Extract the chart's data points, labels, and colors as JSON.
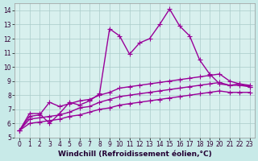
{
  "xlabel": "Windchill (Refroidissement éolien,°C)",
  "bg_color": "#c8eae8",
  "plot_bg_color": "#d8f0ee",
  "line_color": "#990099",
  "xlim": [
    -0.5,
    23.5
  ],
  "ylim": [
    5,
    14.5
  ],
  "xticks": [
    0,
    1,
    2,
    3,
    4,
    5,
    6,
    7,
    8,
    9,
    10,
    11,
    12,
    13,
    14,
    15,
    16,
    17,
    18,
    19,
    20,
    21,
    22,
    23
  ],
  "yticks": [
    5,
    6,
    7,
    8,
    9,
    10,
    11,
    12,
    13,
    14
  ],
  "series": [
    {
      "x": [
        0,
        1,
        2,
        3,
        4,
        5,
        6,
        7,
        8,
        9,
        10,
        11,
        12,
        13,
        14,
        15,
        16,
        17,
        18,
        19,
        20,
        21,
        22,
        23
      ],
      "y": [
        5.5,
        6.7,
        6.7,
        6.0,
        6.7,
        7.5,
        7.3,
        7.6,
        8.1,
        12.7,
        12.2,
        10.9,
        11.7,
        12.0,
        13.0,
        14.1,
        12.9,
        12.2,
        10.5,
        9.5,
        8.8,
        8.7,
        8.8,
        8.6
      ]
    },
    {
      "x": [
        0,
        1,
        2,
        3,
        4,
        5,
        6,
        7,
        8,
        9,
        10,
        11,
        12,
        13,
        14,
        15,
        16,
        17,
        18,
        19,
        20,
        21,
        22,
        23
      ],
      "y": [
        5.5,
        6.5,
        6.6,
        7.5,
        7.2,
        7.4,
        7.6,
        7.7,
        8.0,
        8.2,
        8.5,
        8.6,
        8.7,
        8.8,
        8.9,
        9.0,
        9.1,
        9.2,
        9.3,
        9.4,
        9.5,
        9.0,
        8.8,
        8.7
      ]
    },
    {
      "x": [
        0,
        1,
        2,
        3,
        4,
        5,
        6,
        7,
        8,
        9,
        10,
        11,
        12,
        13,
        14,
        15,
        16,
        17,
        18,
        19,
        20,
        21,
        22,
        23
      ],
      "y": [
        5.5,
        6.3,
        6.4,
        6.5,
        6.6,
        6.8,
        7.1,
        7.2,
        7.5,
        7.7,
        7.9,
        8.0,
        8.1,
        8.2,
        8.3,
        8.4,
        8.5,
        8.6,
        8.7,
        8.8,
        8.9,
        8.7,
        8.7,
        8.6
      ]
    },
    {
      "x": [
        0,
        1,
        2,
        3,
        4,
        5,
        6,
        7,
        8,
        9,
        10,
        11,
        12,
        13,
        14,
        15,
        16,
        17,
        18,
        19,
        20,
        21,
        22,
        23
      ],
      "y": [
        5.5,
        6.0,
        6.1,
        6.2,
        6.3,
        6.5,
        6.6,
        6.8,
        7.0,
        7.1,
        7.3,
        7.4,
        7.5,
        7.6,
        7.7,
        7.8,
        7.9,
        8.0,
        8.1,
        8.2,
        8.3,
        8.2,
        8.2,
        8.2
      ]
    }
  ],
  "marker": "+",
  "markersize": 4,
  "linewidth": 1.0,
  "grid_color": "#aaccca",
  "tick_fontsize": 5.5,
  "label_fontsize": 6.5
}
